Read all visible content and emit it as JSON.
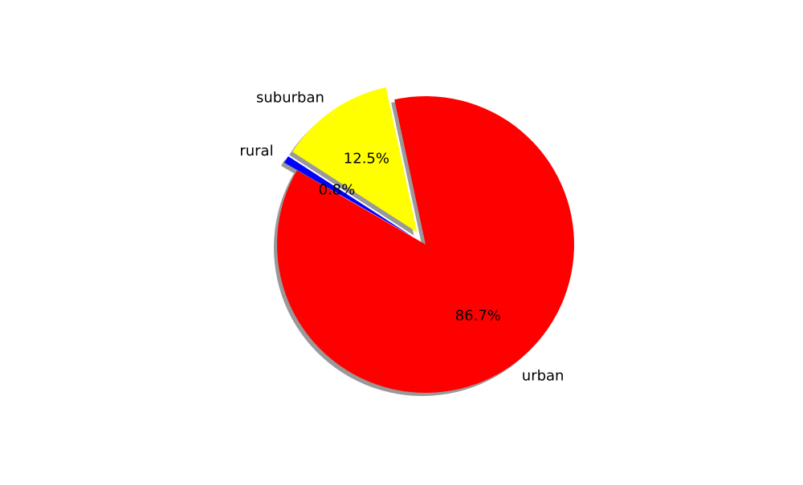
{
  "chart_data": {
    "type": "pie",
    "categories": [
      "urban",
      "suburban",
      "rural"
    ],
    "values": [
      86.7,
      12.5,
      0.8
    ],
    "pct_labels": [
      "86.7%",
      "12.5%",
      "0.8%"
    ],
    "colors": [
      "#ff0000",
      "#ffff00",
      "#0000ff"
    ],
    "start_angle_deg": 150,
    "exploded": [
      false,
      true,
      true
    ],
    "shadow": true,
    "title": "",
    "legend": "none"
  }
}
